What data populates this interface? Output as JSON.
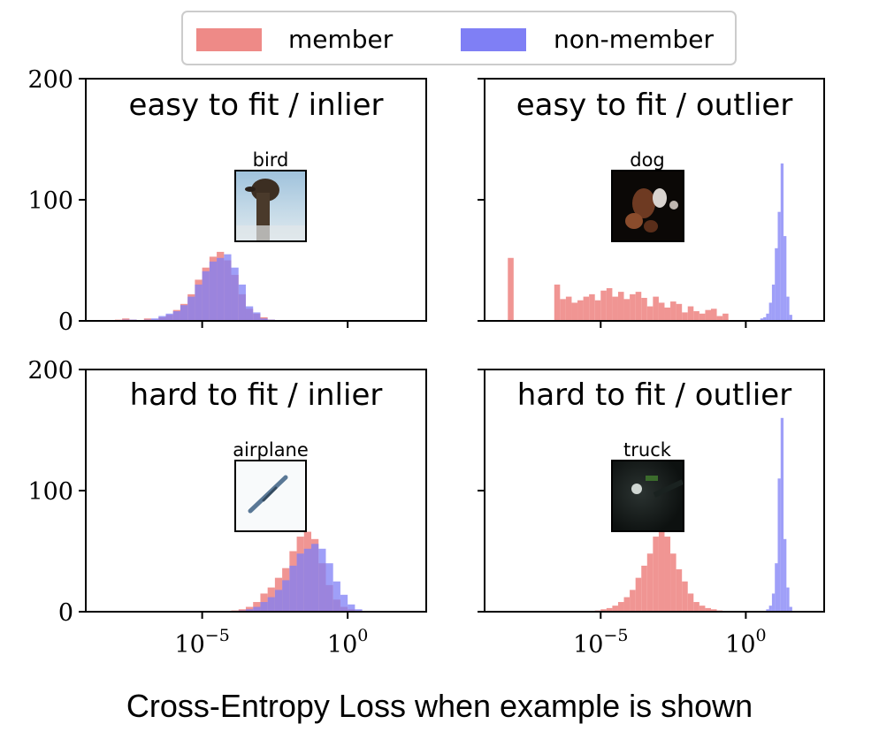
{
  "figure": {
    "xlabel": "Cross-Entropy Loss when example is shown"
  },
  "legend": {
    "position": "top-center",
    "entries": [
      {
        "label": "member",
        "color": "#ee8a87"
      },
      {
        "label": "non-member",
        "color": "#7f7ff5"
      }
    ]
  },
  "colors": {
    "member": "#ee8a87",
    "non_member": "#7f7ff5",
    "overlap": "#8a45b8"
  },
  "chart_data": [
    {
      "type": "bar",
      "title": "easy to fit / inlier",
      "example_label": "bird",
      "x_scale": "log10",
      "xlim_exponent": [
        -9,
        2.7
      ],
      "ylim": [
        0,
        200
      ],
      "yticks": [
        0,
        100,
        200
      ],
      "xticks_exponent": [
        -5,
        0
      ],
      "xtick_labels": [
        "10^{-5}",
        "10^{0}"
      ],
      "series": [
        {
          "name": "member",
          "bin_start_exponent": -8,
          "bin_width_exponent": 0.25,
          "counts": [
            1,
            2,
            1,
            0,
            2,
            1,
            3,
            5,
            9,
            14,
            22,
            34,
            44,
            53,
            57,
            50,
            38,
            22,
            10,
            6,
            3,
            1
          ]
        },
        {
          "name": "non-member",
          "bin_start_exponent": -8,
          "bin_width_exponent": 0.25,
          "counts": [
            0,
            1,
            1,
            0,
            1,
            2,
            4,
            6,
            8,
            13,
            20,
            30,
            41,
            49,
            52,
            55,
            44,
            30,
            12,
            7,
            2,
            1
          ]
        }
      ]
    },
    {
      "type": "bar",
      "title": "easy to fit / outlier",
      "example_label": "dog",
      "x_scale": "log10",
      "xlim_exponent": [
        -9,
        2.7
      ],
      "ylim": [
        0,
        200
      ],
      "yticks": [
        0,
        100,
        200
      ],
      "xticks_exponent": [
        -5,
        0
      ],
      "xtick_labels": [
        "10^{-5}",
        "10^{0}"
      ],
      "series": [
        {
          "name": "member",
          "bin_start_exponent": -8.2,
          "bin_width_exponent": 0.2,
          "counts": [
            52,
            0,
            0,
            0,
            0,
            0,
            0,
            0,
            30,
            18,
            20,
            15,
            17,
            20,
            22,
            17,
            25,
            27,
            20,
            24,
            18,
            22,
            24,
            19,
            12,
            20,
            15,
            11,
            16,
            14,
            7,
            12,
            8,
            6,
            9,
            10,
            4,
            6,
            0,
            0,
            0,
            0,
            0,
            0,
            0,
            0,
            0,
            0,
            0,
            0
          ]
        },
        {
          "name": "non-member",
          "bin_start_exponent": 0.5,
          "bin_width_exponent": 0.1,
          "counts": [
            2,
            3,
            6,
            15,
            30,
            60,
            90,
            130,
            70,
            20,
            5
          ]
        }
      ]
    },
    {
      "type": "bar",
      "title": "hard to fit / inlier",
      "example_label": "airplane",
      "x_scale": "log10",
      "xlim_exponent": [
        -9,
        2.7
      ],
      "ylim": [
        0,
        200
      ],
      "yticks": [
        0,
        100,
        200
      ],
      "xticks_exponent": [
        -5,
        0
      ],
      "xtick_labels": [
        "10^{-5}",
        "10^{0}"
      ],
      "series": [
        {
          "name": "member",
          "bin_start_exponent": -4,
          "bin_width_exponent": 0.25,
          "counts": [
            1,
            2,
            4,
            8,
            15,
            20,
            28,
            36,
            50,
            62,
            66,
            60,
            40,
            22,
            10,
            4,
            2,
            1
          ]
        },
        {
          "name": "non-member",
          "bin_start_exponent": -4,
          "bin_width_exponent": 0.25,
          "counts": [
            0,
            1,
            2,
            4,
            8,
            12,
            18,
            26,
            38,
            48,
            52,
            56,
            52,
            40,
            25,
            14,
            6,
            2
          ]
        }
      ]
    },
    {
      "type": "bar",
      "title": "hard to fit / outlier",
      "example_label": "truck",
      "x_scale": "log10",
      "xlim_exponent": [
        -9,
        2.7
      ],
      "ylim": [
        0,
        200
      ],
      "yticks": [
        0,
        100,
        200
      ],
      "xticks_exponent": [
        -5,
        0
      ],
      "xtick_labels": [
        "10^{-5}",
        "10^{0}"
      ],
      "series": [
        {
          "name": "member",
          "bin_start_exponent": -5.2,
          "bin_width_exponent": 0.2,
          "counts": [
            1,
            2,
            3,
            5,
            8,
            12,
            18,
            28,
            38,
            48,
            62,
            68,
            62,
            48,
            35,
            25,
            15,
            8,
            5,
            3,
            2,
            1
          ]
        },
        {
          "name": "non-member",
          "bin_start_exponent": 0.7,
          "bin_width_exponent": 0.1,
          "counts": [
            2,
            5,
            15,
            40,
            110,
            160,
            60,
            20,
            4
          ]
        }
      ]
    }
  ]
}
